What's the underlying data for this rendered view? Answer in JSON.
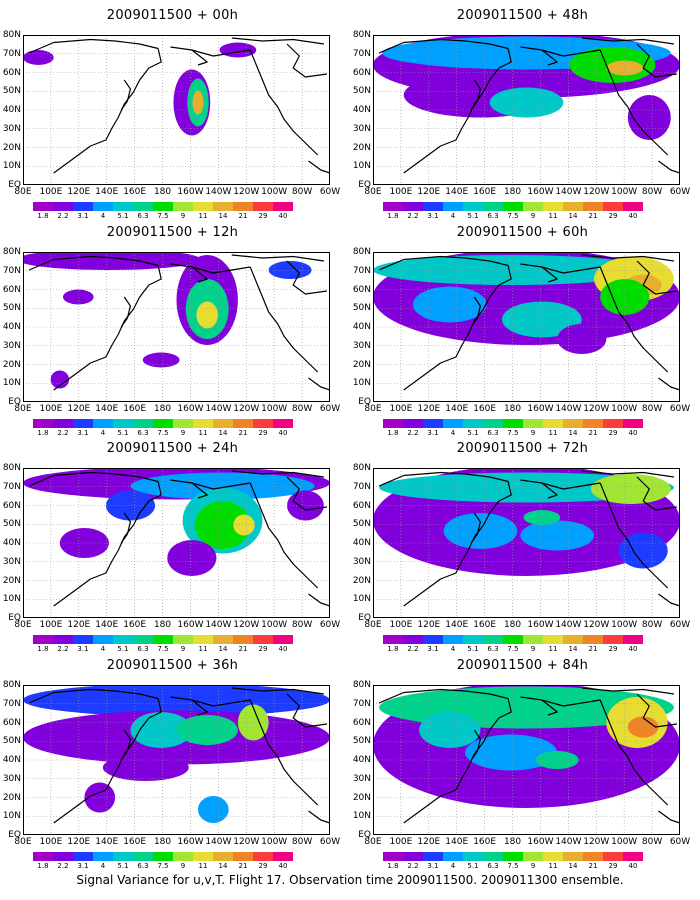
{
  "figure": {
    "caption": "Signal Variance for u,v,T. Flight 17. Observation time 2009011500. 2009011300 ensemble."
  },
  "panels": [
    {
      "title": "2009011500 + 00h",
      "lead_hours": 0
    },
    {
      "title": "2009011500 + 48h",
      "lead_hours": 48
    },
    {
      "title": "2009011500 + 12h",
      "lead_hours": 12
    },
    {
      "title": "2009011500 + 60h",
      "lead_hours": 60
    },
    {
      "title": "2009011500 + 24h",
      "lead_hours": 24
    },
    {
      "title": "2009011500 + 72h",
      "lead_hours": 72
    },
    {
      "title": "2009011500 + 36h",
      "lead_hours": 36
    },
    {
      "title": "2009011500 + 84h",
      "lead_hours": 84
    }
  ],
  "axes": {
    "lat_labels": [
      "80N",
      "70N",
      "60N",
      "50N",
      "40N",
      "30N",
      "20N",
      "10N",
      "EQ"
    ],
    "lon_labels": [
      "80E",
      "100E",
      "120E",
      "140E",
      "160E",
      "180",
      "160W",
      "140W",
      "120W",
      "100W",
      "80W",
      "60W"
    ]
  },
  "colorbar": {
    "levels": [
      "1.8",
      "2.2",
      "3.1",
      "4",
      "5.1",
      "6.3",
      "7.5",
      "9",
      "11",
      "14",
      "21",
      "29",
      "40"
    ],
    "colors": [
      "#a000c8",
      "#8200dc",
      "#1e3cff",
      "#00a0ff",
      "#00c8c8",
      "#00d28c",
      "#00dc00",
      "#a0e632",
      "#e6dc32",
      "#e6af2d",
      "#f08228",
      "#fa3c3c",
      "#f00082"
    ]
  },
  "colors": {
    "coastline": "#000000",
    "grid": "#999999"
  }
}
